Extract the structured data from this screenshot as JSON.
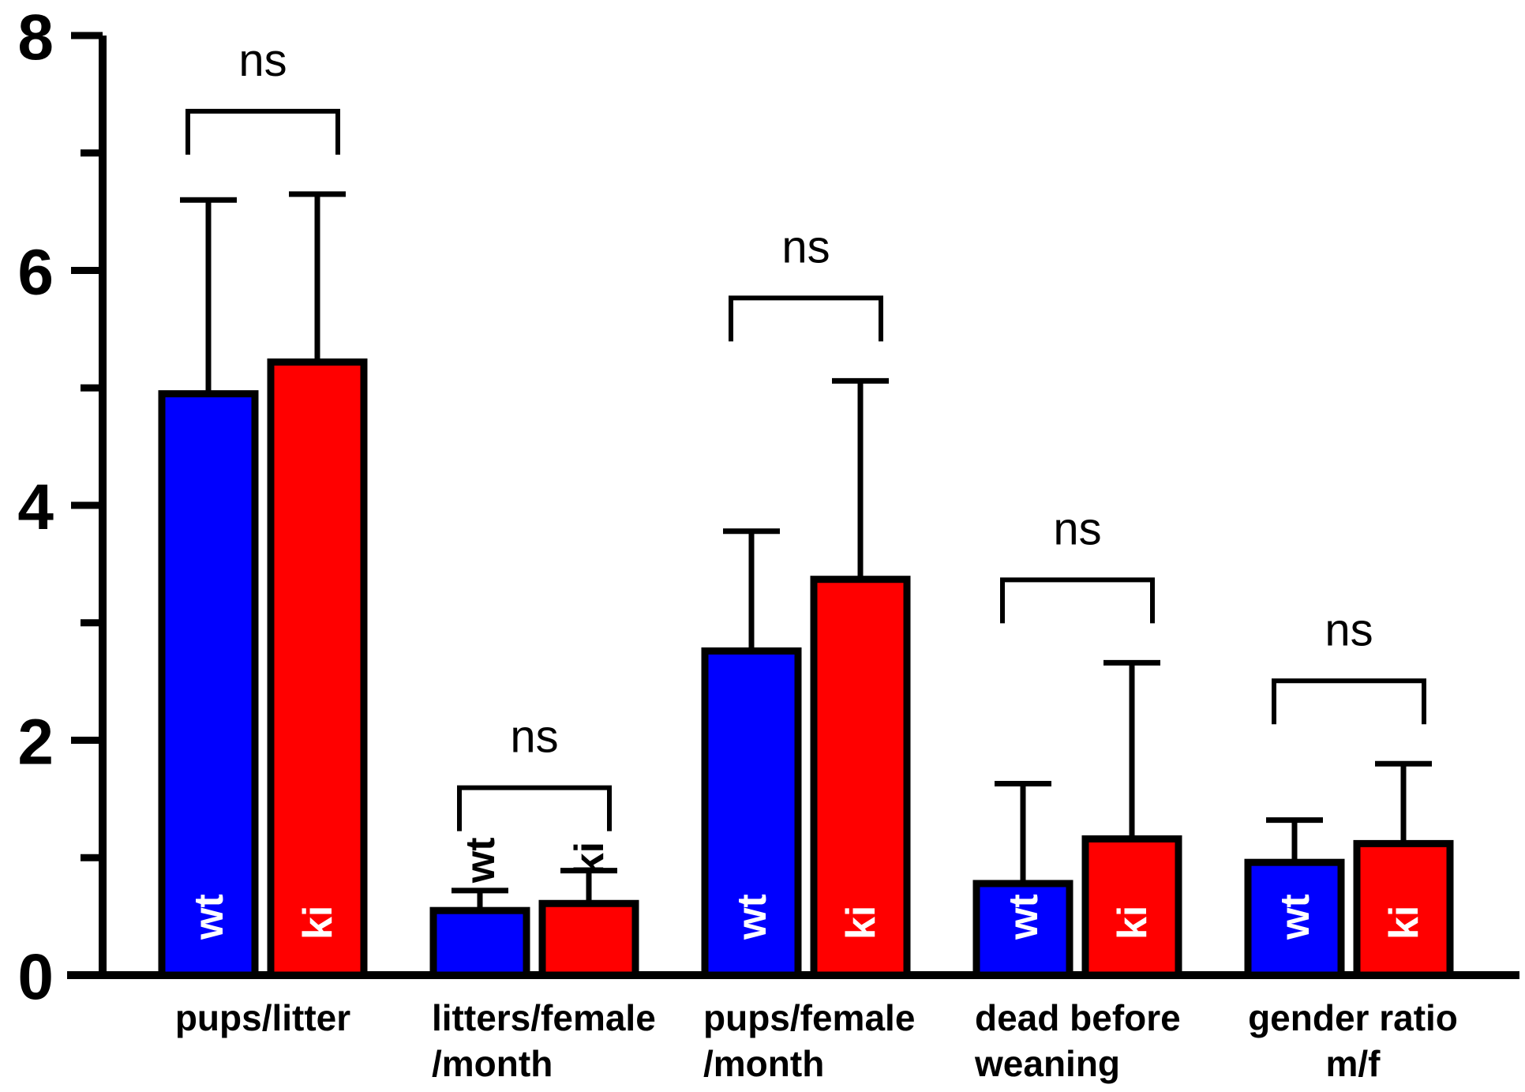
{
  "chart_data": {
    "type": "bar",
    "title": "",
    "xlabel": "",
    "ylabel": "",
    "ylim": [
      0,
      8
    ],
    "yticks": [
      0,
      2,
      4,
      6,
      8
    ],
    "grid": false,
    "categories": [
      [
        "pups/litter"
      ],
      [
        "litters/female",
        "/month"
      ],
      [
        "pups/female",
        "/month"
      ],
      [
        "dead before",
        "weaning"
      ],
      [
        "gender ratio",
        "m/f"
      ]
    ],
    "series": [
      {
        "name": "wt",
        "color": "#0000ff",
        "values": [
          4.95,
          0.55,
          2.76,
          0.78,
          0.96
        ],
        "errors": [
          1.65,
          0.17,
          1.02,
          0.85,
          0.36
        ]
      },
      {
        "name": "ki",
        "color": "#ff0000",
        "values": [
          5.22,
          0.61,
          3.37,
          1.16,
          1.12
        ],
        "errors": [
          1.43,
          0.28,
          1.69,
          1.5,
          0.68
        ]
      }
    ],
    "significance": [
      "ns",
      "ns",
      "ns",
      "ns",
      "ns"
    ],
    "bar_labels_outside_category": 1
  }
}
